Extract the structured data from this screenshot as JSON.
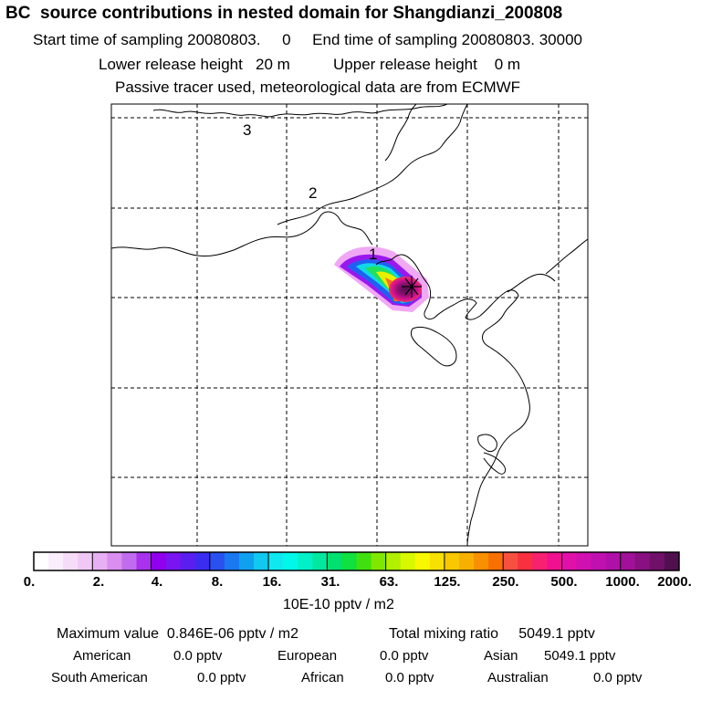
{
  "header": {
    "title": "BC  source contributions in nested domain for Shangdianzi_200808",
    "line1": "Start time of sampling 20080803.     0     End time of sampling 20080803. 30000",
    "line2": "Lower release height   20 m          Upper release height    0 m",
    "line3": "Passive tracer used, meteorological data are from ECMWF"
  },
  "map": {
    "region_labels": [
      "3",
      "2",
      "1"
    ],
    "marker_icon": "receptor-star-icon"
  },
  "colorbar": {
    "tick_labels": [
      "0.",
      "2.",
      "4.",
      "8.",
      "16.",
      "31.",
      "63.",
      "125.",
      "250.",
      "500.",
      "1000.",
      "2000."
    ],
    "colors": [
      "#ffffff",
      "#fbeefc",
      "#f6dcf9",
      "#f0c8f6",
      "#e8b0f3",
      "#d98ef0",
      "#c16cee",
      "#a832ee",
      "#9000ee",
      "#7a14f0",
      "#5a1ef0",
      "#3c2cf0",
      "#2a50f0",
      "#1a78f0",
      "#10a0f0",
      "#10c8f0",
      "#10e8f0",
      "#00f8e8",
      "#00f0c8",
      "#00e8a0",
      "#00e070",
      "#10e040",
      "#40e010",
      "#80e800",
      "#b0f000",
      "#d8f800",
      "#f8f800",
      "#f8e000",
      "#f8c800",
      "#f8b000",
      "#f89000",
      "#f87000",
      "#f85040",
      "#f83040",
      "#f82070",
      "#f01090",
      "#e010a8",
      "#d010b0",
      "#c010b0",
      "#b010a8",
      "#a01098",
      "#881080",
      "#701068",
      "#501050"
    ],
    "units": "10E-10 pptv / m2"
  },
  "stats": {
    "max_label": "Maximum value  0.846E-06 pptv / m2",
    "total_label": "Total mixing ratio     5049.1 pptv",
    "regions": [
      {
        "name": "American",
        "value": "0.0 pptv"
      },
      {
        "name": "European",
        "value": "0.0 pptv"
      },
      {
        "name": "Asian",
        "value": "5049.1 pptv"
      },
      {
        "name": "South American",
        "value": "0.0 pptv"
      },
      {
        "name": "African",
        "value": "0.0 pptv"
      },
      {
        "name": "Australian",
        "value": "0.0 pptv"
      }
    ]
  }
}
